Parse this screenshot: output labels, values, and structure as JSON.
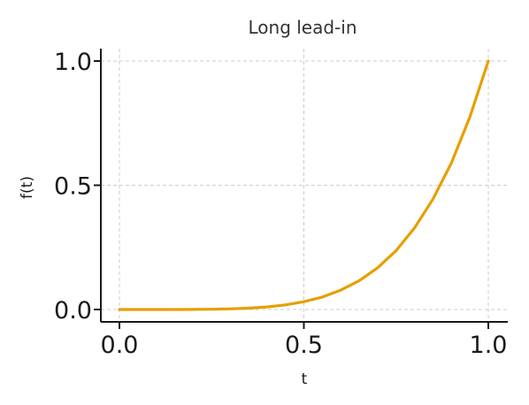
{
  "chart_data": {
    "type": "line",
    "title": "Long lead-in",
    "xlabel": "t",
    "ylabel": "f(t)",
    "xlim": [
      -0.03,
      1.05
    ],
    "ylim": [
      -0.05,
      1.05
    ],
    "xticks": [
      0.0,
      0.5,
      1.0
    ],
    "yticks": [
      0.0,
      0.5,
      1.0
    ],
    "xtick_labels": [
      "0.0",
      "0.5",
      "1.0"
    ],
    "ytick_labels": [
      "0.0",
      "0.5",
      "1.0"
    ],
    "grid": true,
    "series": [
      {
        "color": "#E69F00",
        "x": [
          0.0,
          0.05,
          0.1,
          0.15,
          0.2,
          0.25,
          0.3,
          0.35,
          0.4,
          0.45,
          0.5,
          0.55,
          0.6,
          0.65,
          0.7,
          0.75,
          0.8,
          0.85,
          0.9,
          0.95,
          1.0
        ],
        "y": [
          0.0,
          0.0,
          0.0,
          0.0,
          0.0003,
          0.001,
          0.0024,
          0.0053,
          0.0102,
          0.0185,
          0.0313,
          0.0503,
          0.0778,
          0.116,
          0.168,
          0.237,
          0.328,
          0.444,
          0.59,
          0.774,
          1.0
        ]
      }
    ]
  }
}
